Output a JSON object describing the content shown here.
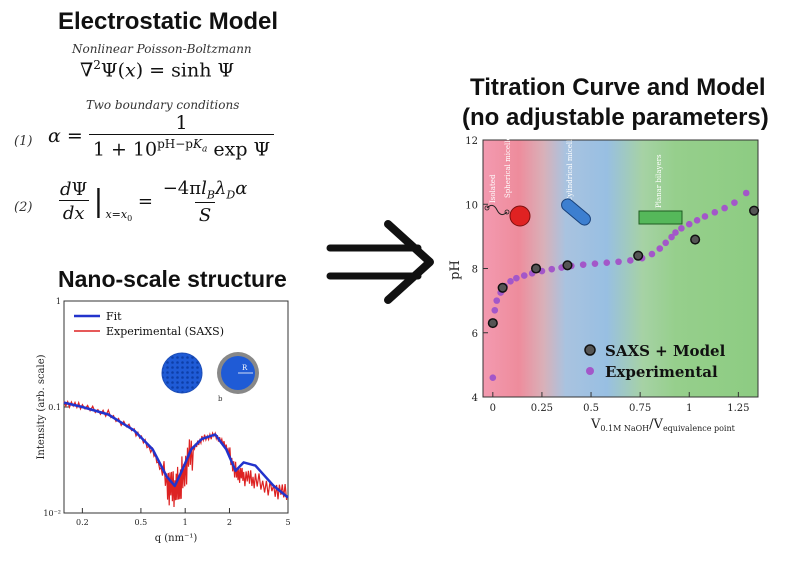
{
  "model": {
    "title": "Electrostatic Model",
    "pb_label": "Nonlinear Poisson-Boltzmann",
    "bc_label": "Two boundary conditions",
    "eq1_num": "(1)",
    "eq2_num": "(2)"
  },
  "nano": {
    "title": "Nano-scale structure",
    "legend": [
      "Fit",
      "Experimental (SAXS)"
    ],
    "ylabel": "Intensity (arb. scale)",
    "xlabel": "q (nm⁻¹)",
    "yticks": [
      "1",
      "0.1",
      "10⁻²"
    ],
    "xticks": [
      "0.2",
      "0.5",
      "1",
      "2",
      "5"
    ],
    "r_label": "R",
    "shell_label": "b"
  },
  "titration": {
    "title_line1": "Titration Curve and Model",
    "title_line2": "(no adjustable parameters)",
    "ylabel": "pH",
    "xlabel_main": "V",
    "xlabel_sub1": "0.1M NaOH",
    "xlabel_mid": "/V",
    "xlabel_sub2": "equivalence point",
    "yticks": [
      "4",
      "6",
      "8",
      "10",
      "12"
    ],
    "xticks": [
      "0",
      "0.25",
      "0.5",
      "0.75",
      "1",
      "1.25"
    ],
    "regions": [
      "Isolated",
      "Spherical micelle",
      "Cylindrical micelle",
      "Planar bilayers"
    ],
    "legend": [
      "SAXS + Model",
      "Experimental"
    ]
  },
  "chart_data": [
    {
      "type": "scatter",
      "title": "Titration Curve and Model (no adjustable parameters)",
      "xlabel": "V0.1M NaOH/Vequivalence point",
      "ylabel": "pH",
      "xlim": [
        -0.05,
        1.35
      ],
      "ylim": [
        4,
        12
      ],
      "series": [
        {
          "name": "SAXS + Model",
          "color": "#444444",
          "x": [
            0.0,
            0.05,
            0.22,
            0.38,
            0.74,
            1.03,
            1.33
          ],
          "y": [
            6.3,
            7.4,
            8.0,
            8.1,
            8.4,
            8.9,
            9.8
          ]
        },
        {
          "name": "Experimental",
          "color": "#a357c9",
          "x": [
            0.0,
            0.01,
            0.02,
            0.04,
            0.06,
            0.09,
            0.12,
            0.16,
            0.2,
            0.25,
            0.3,
            0.35,
            0.4,
            0.46,
            0.52,
            0.58,
            0.64,
            0.7,
            0.76,
            0.81,
            0.85,
            0.88,
            0.91,
            0.93,
            0.96,
            1.0,
            1.04,
            1.08,
            1.13,
            1.18,
            1.23,
            1.29
          ],
          "y": [
            4.6,
            6.7,
            7.0,
            7.25,
            7.45,
            7.6,
            7.7,
            7.78,
            7.85,
            7.92,
            7.98,
            8.03,
            8.08,
            8.12,
            8.15,
            8.18,
            8.21,
            8.25,
            8.32,
            8.45,
            8.62,
            8.8,
            8.98,
            9.12,
            9.25,
            9.38,
            9.5,
            9.62,
            9.75,
            9.88,
            10.05,
            10.35
          ]
        }
      ]
    },
    {
      "type": "line",
      "title": "Nano-scale structure",
      "xlabel": "q (nm⁻¹)",
      "ylabel": "Intensity (arb. scale)",
      "xscale": "log",
      "yscale": "log",
      "xlim": [
        0.15,
        5
      ],
      "ylim": [
        0.01,
        1
      ],
      "series": [
        {
          "name": "Fit",
          "color": "#2233cc",
          "x": [
            0.15,
            0.2,
            0.3,
            0.45,
            0.6,
            0.75,
            0.85,
            0.95,
            1.1,
            1.3,
            1.6,
            1.9,
            2.2,
            2.5,
            3.0,
            4.0,
            5.0
          ],
          "y": [
            0.11,
            0.1,
            0.085,
            0.06,
            0.04,
            0.022,
            0.018,
            0.025,
            0.04,
            0.05,
            0.055,
            0.04,
            0.025,
            0.03,
            0.028,
            0.018,
            0.014
          ]
        },
        {
          "name": "Experimental (SAXS)",
          "color": "#dd2222",
          "x": [
            0.15,
            0.2,
            0.3,
            0.45,
            0.6,
            0.75,
            0.85,
            0.95,
            1.1,
            1.3,
            1.6,
            1.9,
            2.2,
            2.5,
            3.0,
            4.0,
            5.0
          ],
          "y": [
            0.11,
            0.1,
            0.087,
            0.06,
            0.038,
            0.02,
            0.015,
            0.022,
            0.038,
            0.05,
            0.055,
            0.042,
            0.025,
            0.022,
            0.02,
            0.017,
            0.015
          ]
        }
      ]
    }
  ]
}
